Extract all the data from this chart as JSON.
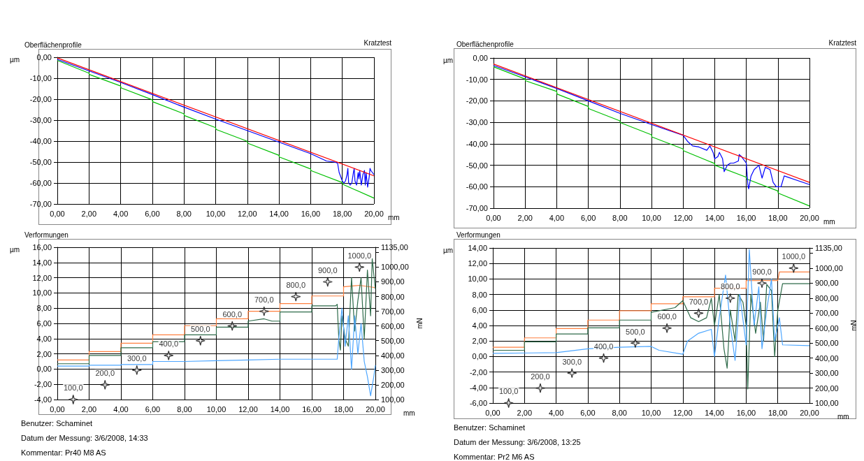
{
  "chart_data": [
    {
      "type": "line",
      "title": "Oberflächenprofile",
      "xlabel": "mm",
      "ylabel": "µm",
      "annotations": [
        "Kratztest"
      ],
      "grid": true,
      "xlim": [
        0,
        20
      ],
      "xticks": [
        {
          "value": 0,
          "label": "0,00"
        },
        {
          "value": 2,
          "label": "2,00"
        },
        {
          "value": 4,
          "label": "4,00"
        },
        {
          "value": 6,
          "label": "6,00"
        },
        {
          "value": 8,
          "label": "8,00"
        },
        {
          "value": 10,
          "label": "10,00"
        },
        {
          "value": 12,
          "label": "12,00"
        },
        {
          "value": 14,
          "label": "14,00"
        },
        {
          "value": 16,
          "label": "16,00"
        },
        {
          "value": 18,
          "label": "18,00"
        },
        {
          "value": 20,
          "label": "20,00"
        }
      ],
      "ylim": [
        -70,
        0
      ],
      "yticks": [
        {
          "value": -70,
          "label": "-70,00"
        },
        {
          "value": -60,
          "label": "-60,00"
        },
        {
          "value": -50,
          "label": "-50,00"
        },
        {
          "value": -40,
          "label": "-40,00"
        },
        {
          "value": -30,
          "label": "-30,00"
        },
        {
          "value": -20,
          "label": "-20,00"
        },
        {
          "value": -10,
          "label": "-10,00"
        },
        {
          "value": 0,
          "label": "0,00"
        }
      ],
      "series": [
        {
          "color": "#00c000",
          "x": [
            0,
            2,
            2.02,
            4,
            4.02,
            6,
            6.02,
            8,
            8.02,
            10,
            10.02,
            12,
            12.02,
            14,
            14.02,
            16,
            16.02,
            18,
            18.02,
            20
          ],
          "values": [
            -1.5,
            -7.6,
            -8.2,
            -13.7,
            -14.6,
            -20.3,
            -21.2,
            -27.0,
            -27.8,
            -33.6,
            -34.4,
            -40.1,
            -41.0,
            -46.8,
            -47.6,
            -53.3,
            -54.1,
            -59.8,
            -60.6,
            -67.2
          ]
        },
        {
          "color": "#0000ff",
          "x": [
            0,
            2,
            4,
            6,
            8,
            10,
            12,
            14,
            16,
            17,
            17.5,
            17.7,
            17.8,
            17.9,
            18.0,
            18.1,
            18.2,
            18.3,
            18.35,
            18.4,
            18.5,
            18.6,
            18.7,
            18.75,
            18.8,
            18.9,
            19.0,
            19.05,
            19.1,
            19.2,
            19.3,
            19.4,
            19.45,
            19.5,
            19.6,
            19.7,
            19.75,
            19.8,
            19.9,
            20
          ],
          "values": [
            -1,
            -6.5,
            -12,
            -17.8,
            -23.8,
            -29.5,
            -35,
            -40.5,
            -46,
            -49.5,
            -50,
            -50.5,
            -55,
            -57,
            -59,
            -60,
            -59,
            -56,
            -53,
            -60,
            -61,
            -60,
            -55,
            -53,
            -59,
            -61,
            -55,
            -58,
            -54,
            -61,
            -56,
            -54,
            -61,
            -55,
            -62,
            -57,
            -53,
            -54,
            -55,
            -56
          ]
        },
        {
          "color": "#ff0000",
          "x": [
            0,
            20
          ],
          "values": [
            -0.3,
            -56.6
          ]
        }
      ]
    },
    {
      "type": "line",
      "title": "Verformungen",
      "xlabel": "mm",
      "ylabel": "µm",
      "y2label": "mN",
      "grid": true,
      "annotations": [
        "Benutzer: Schaminet",
        "Datum der Messung: 3/6/2008, 14:33",
        "Kommentar: Pr40 M8 AS"
      ],
      "xlim": [
        0,
        20
      ],
      "xticks": [
        {
          "value": 0,
          "label": "0,00"
        },
        {
          "value": 2,
          "label": "2,00"
        },
        {
          "value": 4,
          "label": "4,00"
        },
        {
          "value": 6,
          "label": "6,00"
        },
        {
          "value": 8,
          "label": "8,00"
        },
        {
          "value": 10,
          "label": "10,00"
        },
        {
          "value": 12,
          "label": "12,00"
        },
        {
          "value": 14,
          "label": "14,00"
        },
        {
          "value": 16,
          "label": "16,00"
        },
        {
          "value": 18,
          "label": "18,00"
        },
        {
          "value": 20,
          "label": "20,00"
        }
      ],
      "ylim": [
        -4,
        16
      ],
      "yticks": [
        {
          "value": -4,
          "label": "-4,00"
        },
        {
          "value": -2,
          "label": "-2,00"
        },
        {
          "value": 0,
          "label": "0,00"
        },
        {
          "value": 2,
          "label": "2,00"
        },
        {
          "value": 4,
          "label": "4,00"
        },
        {
          "value": 6,
          "label": "6,00"
        },
        {
          "value": 8,
          "label": "8,00"
        },
        {
          "value": 10,
          "label": "10,00"
        },
        {
          "value": 12,
          "label": "12,00"
        },
        {
          "value": 14,
          "label": "14,00"
        },
        {
          "value": 16,
          "label": "16,00"
        }
      ],
      "y2lim": [
        100,
        1135
      ],
      "y2ticks": [
        {
          "value": 100,
          "label": "100,00"
        },
        {
          "value": 200,
          "label": "200,00"
        },
        {
          "value": 300,
          "label": "300,00"
        },
        {
          "value": 400,
          "label": "400,00"
        },
        {
          "value": 500,
          "label": "500,00"
        },
        {
          "value": 600,
          "label": "600,00"
        },
        {
          "value": 700,
          "label": "700,00"
        },
        {
          "value": 800,
          "label": "800,00"
        },
        {
          "value": 900,
          "label": "900,00"
        },
        {
          "value": 1000,
          "label": "1000,00"
        },
        {
          "value": 1100,
          "label": null
        },
        {
          "value": 1135,
          "label": "1135,00"
        }
      ],
      "series": [
        {
          "color": "#ff8040",
          "x": [
            0,
            2,
            2,
            4,
            4,
            6,
            6,
            8,
            8,
            10,
            10,
            12,
            12,
            14,
            14,
            16,
            16,
            18,
            18,
            19,
            20
          ],
          "values": [
            1.2,
            1.2,
            2.3,
            2.3,
            3.4,
            3.4,
            4.5,
            4.5,
            5.7,
            5.7,
            6.6,
            6.6,
            7.6,
            7.6,
            8.6,
            8.6,
            9.6,
            9.6,
            10.8,
            11,
            10.7
          ]
        },
        {
          "color": "#2e6b4a",
          "x": [
            0,
            2,
            2,
            4,
            4,
            6,
            6,
            8,
            8,
            10,
            10,
            12,
            12,
            13,
            13.5,
            14,
            14,
            16,
            16,
            17.5,
            17.6,
            17.7,
            17.8,
            17.9,
            18.1,
            18.3,
            18.5,
            18.7,
            18.9,
            19.1,
            19.3,
            19.5,
            19.7,
            19.8,
            20
          ],
          "values": [
            0.7,
            0.7,
            1.8,
            1.8,
            2.8,
            2.8,
            3.6,
            3.6,
            4.5,
            4.5,
            5.5,
            5.5,
            6.3,
            6.6,
            6.3,
            6.3,
            7.5,
            7.5,
            8.3,
            8.3,
            8.5,
            4,
            2.5,
            7,
            4,
            3,
            12,
            5,
            9,
            12,
            4,
            13,
            7,
            14.5,
            10.5
          ]
        },
        {
          "color": "#4da6ff",
          "x": [
            0,
            2,
            2,
            4,
            4,
            6,
            6,
            8,
            10,
            12,
            14,
            16,
            17.6,
            17.7,
            17.9,
            18.1,
            18.3,
            18.5,
            18.7,
            18.9,
            19.1,
            19.3,
            19.5,
            19.7,
            19.9,
            20
          ],
          "values": [
            0.4,
            0.4,
            0.5,
            0.5,
            0.6,
            0.6,
            1.0,
            1.0,
            1.1,
            1.2,
            1.3,
            1.3,
            1.3,
            4,
            8,
            3,
            7,
            0,
            7,
            2,
            6,
            1,
            -1,
            -3.5,
            -1,
            0.5
          ]
        },
        {
          "type": "scatter",
          "axis": "y2",
          "marker": "star",
          "color": "#000000",
          "x": [
            1,
            3,
            5,
            7,
            9,
            11,
            13,
            15,
            17,
            19
          ],
          "values": [
            100,
            200,
            300,
            400,
            500,
            600,
            700,
            800,
            900,
            1000
          ],
          "value_labels": [
            "100,0",
            "200,0",
            "300,0",
            "400,0",
            "500,0",
            "600,0",
            "700,0",
            "800,0",
            "900,0",
            "1000,0"
          ]
        }
      ]
    },
    {
      "type": "line",
      "title": "Oberflächenprofile",
      "xlabel": "mm",
      "ylabel": "µm",
      "annotations": [
        "Kratztest"
      ],
      "grid": true,
      "xlim": [
        0,
        20
      ],
      "xticks": [
        {
          "value": 0,
          "label": "0,00"
        },
        {
          "value": 2,
          "label": "2,00"
        },
        {
          "value": 4,
          "label": "4,00"
        },
        {
          "value": 6,
          "label": "6,00"
        },
        {
          "value": 8,
          "label": "8,00"
        },
        {
          "value": 10,
          "label": "10,00"
        },
        {
          "value": 12,
          "label": "12,00"
        },
        {
          "value": 14,
          "label": "14,00"
        },
        {
          "value": 16,
          "label": "16,00"
        },
        {
          "value": 18,
          "label": "18,00"
        },
        {
          "value": 20,
          "label": "20,00"
        }
      ],
      "ylim": [
        -70,
        0
      ],
      "yticks": [
        {
          "value": -70,
          "label": "-70,00"
        },
        {
          "value": -60,
          "label": "-60,00"
        },
        {
          "value": -50,
          "label": "-50,00"
        },
        {
          "value": -40,
          "label": "-40,00"
        },
        {
          "value": -30,
          "label": "-30,00"
        },
        {
          "value": -20,
          "label": "-20,00"
        },
        {
          "value": -10,
          "label": "-10,00"
        },
        {
          "value": 0,
          "label": "0,00"
        }
      ],
      "series": [
        {
          "color": "#00c000",
          "x": [
            0,
            2,
            2.02,
            4,
            4.02,
            6,
            6.02,
            8,
            8.02,
            10,
            10.02,
            12,
            12.02,
            14,
            14.02,
            16,
            16.02,
            18,
            18.02,
            20
          ],
          "values": [
            -4.1,
            -9.8,
            -10.6,
            -15.6,
            -16.8,
            -22.6,
            -23.6,
            -29.3,
            -30.1,
            -35.8,
            -36.8,
            -42.4,
            -43.2,
            -49.2,
            -50.0,
            -55.6,
            -56.4,
            -62.0,
            -63.0,
            -69
          ]
        },
        {
          "color": "#0000ff",
          "x": [
            0,
            2,
            4,
            6,
            8,
            10,
            12,
            12.3,
            12.6,
            13,
            13.5,
            13.7,
            13.9,
            14.0,
            14.2,
            14.3,
            14.5,
            14.6,
            14.8,
            15.0,
            15.2,
            15.5,
            15.55,
            15.7,
            16.0,
            16.1,
            16.15,
            16.3,
            16.5,
            16.8,
            17.0,
            17.2,
            17.5,
            17.7,
            17.9,
            18.2,
            18.4,
            20
          ],
          "values": [
            -3.5,
            -8.8,
            -14.2,
            -20,
            -25.8,
            -31,
            -36,
            -39,
            -41,
            -41.5,
            -43,
            -41,
            -44,
            -47,
            -46,
            -44,
            -47,
            -53,
            -50,
            -49,
            -49,
            -48,
            -45,
            -46,
            -49,
            -59,
            -61,
            -55,
            -52,
            -50,
            -56,
            -51,
            -52,
            -58,
            -60,
            -60,
            -55,
            -59
          ]
        },
        {
          "color": "#ff0000",
          "x": [
            0,
            20
          ],
          "values": [
            -2.8,
            -58.0
          ]
        }
      ]
    },
    {
      "type": "line",
      "title": "Verformungen",
      "xlabel": "mm",
      "ylabel": "µm",
      "y2label": "mN",
      "grid": true,
      "annotations": [
        "Benutzer: Schaminet",
        "Datum der Messung: 3/6/2008, 13:25",
        "Kommentar: Pr2 M6 AS"
      ],
      "xlim": [
        0,
        20
      ],
      "xticks": [
        {
          "value": 0,
          "label": "0,00"
        },
        {
          "value": 2,
          "label": "2,00"
        },
        {
          "value": 4,
          "label": "4,00"
        },
        {
          "value": 6,
          "label": "6,00"
        },
        {
          "value": 8,
          "label": "8,00"
        },
        {
          "value": 10,
          "label": "10,00"
        },
        {
          "value": 12,
          "label": "12,00"
        },
        {
          "value": 14,
          "label": "14,00"
        },
        {
          "value": 16,
          "label": "16,00"
        },
        {
          "value": 18,
          "label": "18,00"
        },
        {
          "value": 20,
          "label": "20,00"
        }
      ],
      "ylim": [
        -6,
        14
      ],
      "yticks": [
        {
          "value": -6,
          "label": "-6,00"
        },
        {
          "value": -4,
          "label": "-4,00"
        },
        {
          "value": -2,
          "label": "-2,00"
        },
        {
          "value": 0,
          "label": "0,00"
        },
        {
          "value": 2,
          "label": "2,00"
        },
        {
          "value": 4,
          "label": "4,00"
        },
        {
          "value": 6,
          "label": "6,00"
        },
        {
          "value": 8,
          "label": "8,00"
        },
        {
          "value": 10,
          "label": "10,00"
        },
        {
          "value": 12,
          "label": "12,00"
        },
        {
          "value": 14,
          "label": "14,00"
        }
      ],
      "y2lim": [
        100,
        1135
      ],
      "y2ticks": [
        {
          "value": 100,
          "label": "100,00"
        },
        {
          "value": 200,
          "label": "200,00"
        },
        {
          "value": 300,
          "label": "300,00"
        },
        {
          "value": 400,
          "label": "400,00"
        },
        {
          "value": 500,
          "label": "500,00"
        },
        {
          "value": 600,
          "label": "600,00"
        },
        {
          "value": 700,
          "label": "700,00"
        },
        {
          "value": 800,
          "label": "800,00"
        },
        {
          "value": 900,
          "label": "900,00"
        },
        {
          "value": 1000,
          "label": "1000,00"
        },
        {
          "value": 1100,
          "label": null
        },
        {
          "value": 1135,
          "label": "1135,00"
        }
      ],
      "series": [
        {
          "color": "#ff8040",
          "x": [
            0,
            2,
            2,
            4,
            4,
            6,
            6,
            8,
            8,
            10,
            10,
            12,
            12,
            14,
            14,
            16,
            16,
            18,
            18.1,
            20
          ],
          "values": [
            1.2,
            1.2,
            2.4,
            2.4,
            3.6,
            3.6,
            4.7,
            4.7,
            5.9,
            5.9,
            6.8,
            6.8,
            7.7,
            7.7,
            8.8,
            8.8,
            9.8,
            9.8,
            10.9,
            10.9
          ]
        },
        {
          "color": "#2e6b4a",
          "x": [
            0,
            2,
            2,
            4,
            4,
            6,
            6,
            8,
            8,
            10,
            10,
            11.5,
            12,
            12.5,
            13,
            13.5,
            13.8,
            14,
            14.3,
            14.6,
            14.8,
            15,
            15.3,
            15.5,
            15.8,
            16.0,
            16.1,
            16.3,
            16.6,
            16.9,
            17.1,
            17.3,
            17.6,
            17.8,
            18.0,
            18.3,
            20
          ],
          "values": [
            0.8,
            0.8,
            1.9,
            1.9,
            2.9,
            2.9,
            3.7,
            3.7,
            4.7,
            4.7,
            5.7,
            6.3,
            7.2,
            5,
            4.5,
            5,
            7.5,
            4,
            8,
            1,
            -1.5,
            6,
            2,
            8,
            7,
            4,
            -4.2,
            8,
            3,
            7,
            2,
            9.3,
            8.5,
            0,
            6,
            9.4,
            9.4
          ]
        },
        {
          "color": "#4da6ff",
          "x": [
            0,
            4,
            6,
            8,
            10,
            10.5,
            12,
            12.3,
            13,
            13.8,
            14.0,
            14.3,
            14.7,
            15,
            15.3,
            15.6,
            16,
            16.2,
            16.5,
            16.8,
            17.0,
            17.3,
            17.6,
            17.8,
            18.1,
            18.3,
            20
          ],
          "values": [
            0.4,
            0.5,
            1.0,
            1.2,
            1.3,
            0.8,
            0.3,
            2,
            3,
            3.5,
            0,
            5,
            10.5,
            4,
            -0.5,
            8,
            1.5,
            13.8,
            4,
            9,
            1,
            6,
            10,
            2,
            5,
            1.5,
            1.4
          ]
        },
        {
          "type": "scatter",
          "axis": "y2",
          "marker": "star",
          "color": "#000000",
          "x": [
            1,
            3,
            5,
            7,
            9,
            11,
            13,
            15,
            17,
            19
          ],
          "values": [
            100,
            200,
            300,
            400,
            500,
            600,
            700,
            800,
            900,
            1000
          ],
          "value_labels": [
            "100,0",
            "200,0",
            "300,0",
            "400,0",
            "500,0",
            "600,0",
            "700,0",
            "800,0",
            "900,0",
            "1000,0"
          ]
        }
      ]
    }
  ]
}
